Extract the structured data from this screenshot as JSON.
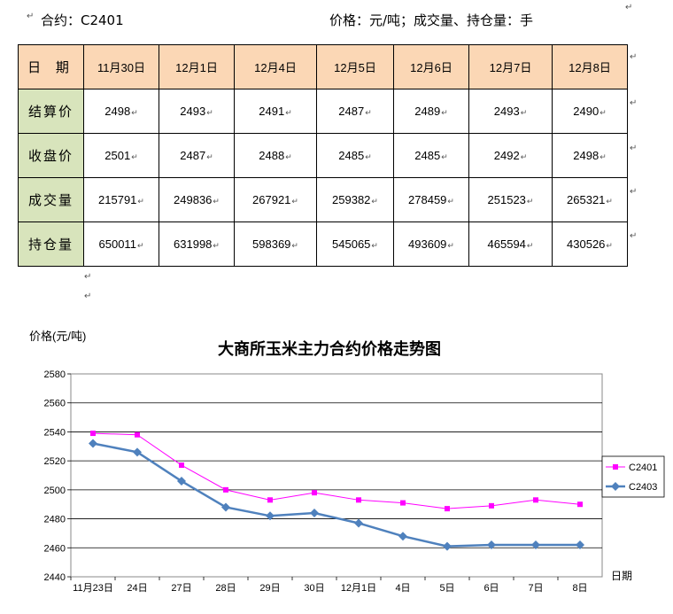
{
  "header": {
    "contract": "合约：C2401",
    "units": "价格：元/吨；成交量、持仓量：手"
  },
  "table": {
    "columns": [
      "日 期",
      "11月30日",
      "12月1日",
      "12月4日",
      "12月5日",
      "12月6日",
      "12月7日",
      "12月8日"
    ],
    "rows": [
      {
        "label": "结算价",
        "values": [
          "2498",
          "2493",
          "2491",
          "2487",
          "2489",
          "2493",
          "2490"
        ]
      },
      {
        "label": "收盘价",
        "values": [
          "2501",
          "2487",
          "2488",
          "2485",
          "2485",
          "2492",
          "2498"
        ]
      },
      {
        "label": "成交量",
        "values": [
          "215791",
          "249836",
          "267921",
          "259382",
          "278459",
          "251523",
          "265321"
        ]
      },
      {
        "label": "持仓量",
        "values": [
          "650011",
          "631998",
          "598369",
          "545065",
          "493609",
          "465594",
          "430526"
        ]
      }
    ]
  },
  "chart_data": {
    "type": "line",
    "title": "大商所玉米主力合约价格走势图",
    "ylabel": "价格(元/吨)",
    "xlabel": "日期",
    "categories": [
      "11月23日",
      "24日",
      "27日",
      "28日",
      "29日",
      "30日",
      "12月1日",
      "4日",
      "5日",
      "6日",
      "7日",
      "8日"
    ],
    "ylim": [
      2440,
      2580
    ],
    "yticks": [
      2440,
      2460,
      2480,
      2500,
      2520,
      2540,
      2560,
      2580
    ],
    "grid": true,
    "legend_position": "right",
    "series": [
      {
        "name": "C2401",
        "color": "#ff00ff",
        "marker": "square",
        "values": [
          2539,
          2538,
          2517,
          2500,
          2493,
          2498,
          2493,
          2491,
          2487,
          2489,
          2493,
          2490
        ]
      },
      {
        "name": "C2403",
        "color": "#4f81bd",
        "marker": "diamond",
        "values": [
          2532,
          2526,
          2506,
          2488,
          2482,
          2484,
          2477,
          2468,
          2461,
          2462,
          2462,
          2462
        ]
      }
    ]
  }
}
